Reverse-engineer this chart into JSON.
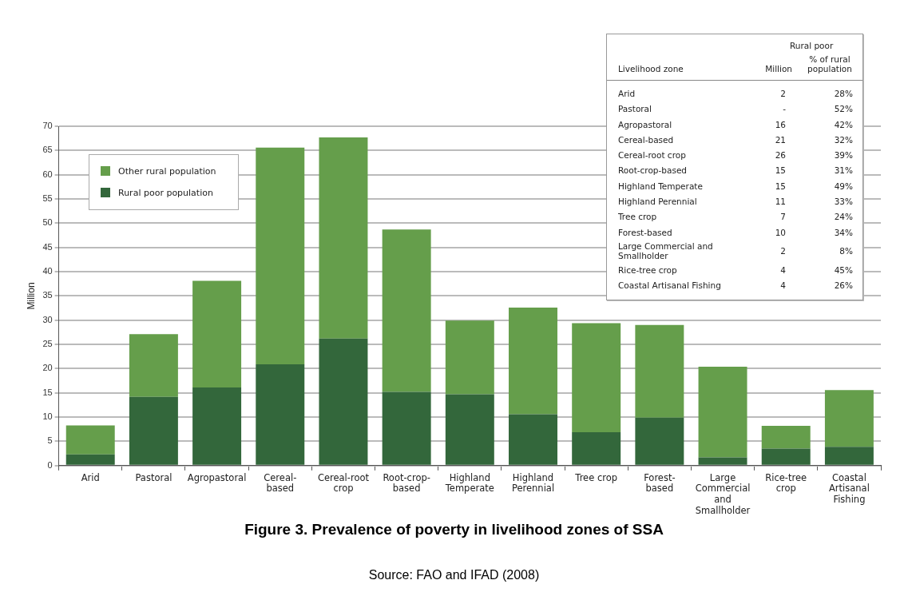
{
  "chart_data": {
    "type": "bar",
    "title": "Figure 3. Prevalence of poverty in livelihood zones of SSA",
    "ylabel": "Million",
    "categories": [
      "Arid",
      "Pastoral",
      "Agropastoral",
      "Cereal-based",
      "Cereal-root crop",
      "Root-crop-based",
      "Highland Temperate",
      "Highland Perennial",
      "Tree crop",
      "Forest-based",
      "Large Commercial and Smallholder",
      "Rice-tree crop",
      "Coastal Artisanal Fishing"
    ],
    "series": [
      {
        "name": "Rural poor population",
        "color": "#33673b",
        "values": [
          2.3,
          14.2,
          16.1,
          20.9,
          26.2,
          15.2,
          14.7,
          10.6,
          6.9,
          9.9,
          1.7,
          3.5,
          3.9
        ]
      },
      {
        "name": "Other rural population",
        "color": "#659e4b",
        "values": [
          6.0,
          12.9,
          22.0,
          44.7,
          41.5,
          33.5,
          15.2,
          22.0,
          22.5,
          19.1,
          18.7,
          4.7,
          11.7
        ]
      }
    ],
    "stacked": true,
    "ylim": [
      0,
      70
    ],
    "yticks": [
      0,
      5,
      10,
      15,
      20,
      25,
      30,
      35,
      40,
      45,
      50,
      55,
      60,
      65,
      70
    ],
    "grid": "y",
    "legend": "top left",
    "annotations": [
      "Rural poor",
      "Livelihood zone",
      "Million",
      "% of rural population",
      "Arid",
      "2",
      "28%",
      "Pastoral",
      "-",
      "52%",
      "Agropastoral",
      "16",
      "42%",
      "Cereal-based",
      "21",
      "32%",
      "Cereal-root crop",
      "26",
      "39%",
      "Root-crop-based",
      "15",
      "31%",
      "Highland Temperate",
      "15",
      "49%",
      "Highland Perennial",
      "11",
      "33%",
      "Tree crop",
      "7",
      "24%",
      "Forest-based",
      "10",
      "34%",
      "Large Commercial and Smallholder",
      "2",
      "8%",
      "Rice-tree crop",
      "4",
      "45%",
      "Coastal Artisanal Fishing",
      "4",
      "26%",
      "Source: FAO and IFAD (2008)"
    ]
  }
}
